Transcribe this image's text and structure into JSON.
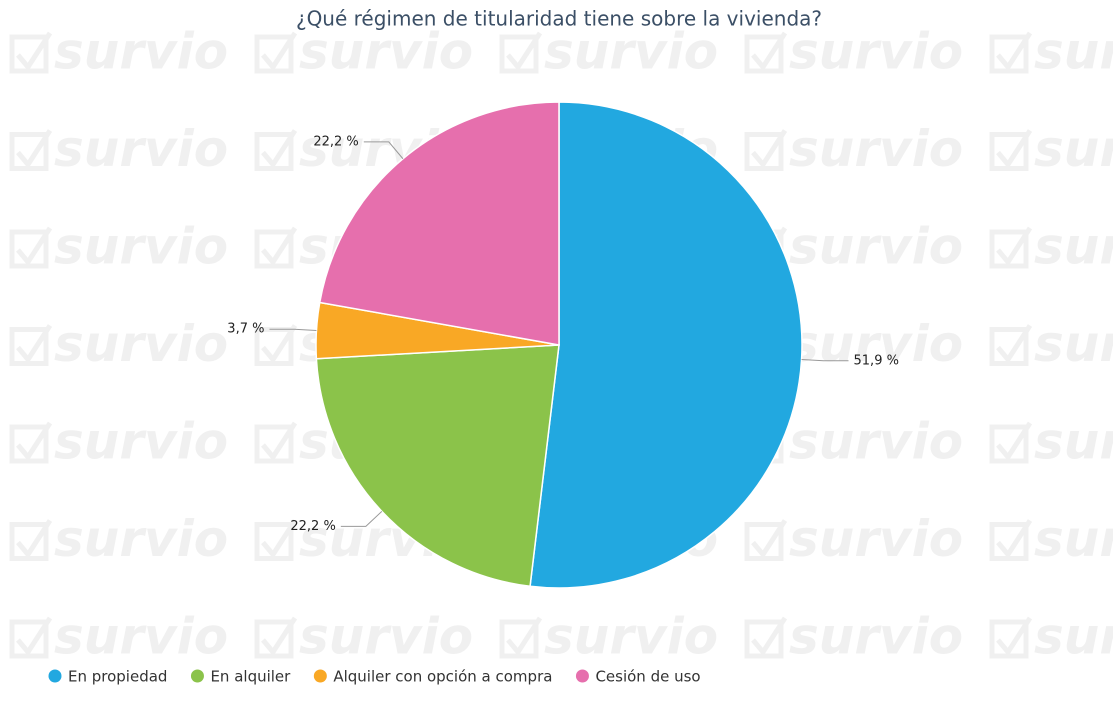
{
  "chart_data": {
    "type": "pie",
    "title": "¿Qué régimen de titularidad tiene sobre la vivienda?",
    "watermark": "survio",
    "categories": [
      "En propiedad",
      "En alquiler",
      "Alquiler con opción a compra",
      "Cesión de uso"
    ],
    "values": [
      51.9,
      22.2,
      3.7,
      22.2
    ],
    "value_labels": [
      "51,9 %",
      "22,2 %",
      "3,7 %",
      "22,2 %"
    ],
    "colors": [
      "#22a8e0",
      "#8bc34a",
      "#f9a825",
      "#e66fad"
    ],
    "legend": "bottom-left"
  }
}
